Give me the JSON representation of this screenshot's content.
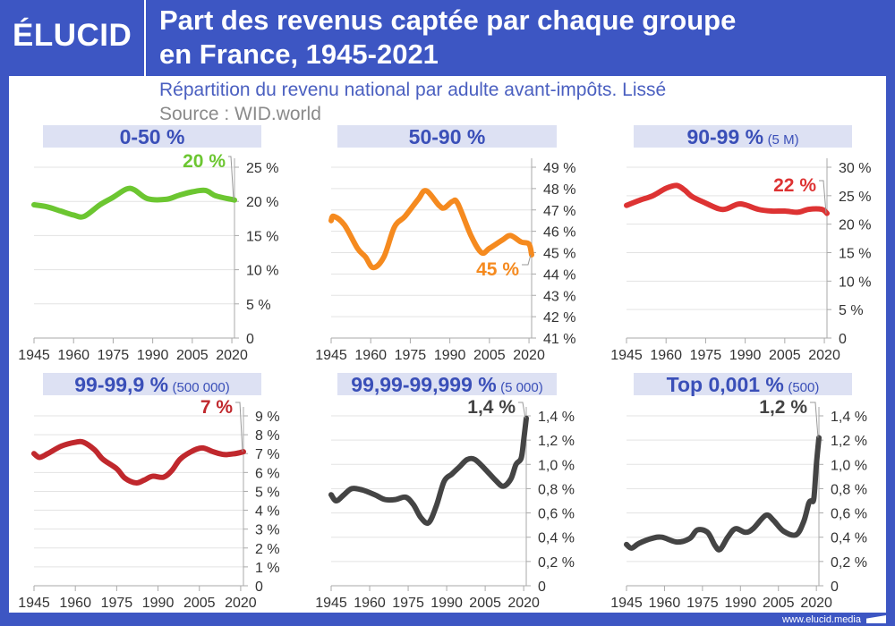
{
  "header": {
    "logo": "ÉLUCID",
    "title_line1": "Part des revenus captée par chaque groupe",
    "title_line2": "en France, 1945-2021",
    "subtitle": "Répartition du revenu national par adulte avant-impôts. Lissé",
    "source": "Source : WID.world"
  },
  "footer": {
    "url": "www.elucid.media"
  },
  "colors": {
    "brand": "#3d56c3",
    "banner": "#dde1f3"
  },
  "chart_data": [
    {
      "type": "line",
      "title": "0-50 %",
      "subtitle": "",
      "color": "#6cc631",
      "callout": "20 %",
      "x_ticks": [
        "1945",
        "1960",
        "1975",
        "1990",
        "2005",
        "2020"
      ],
      "xlim": [
        1945,
        2021
      ],
      "y_ticks": [
        "0",
        "5 %",
        "10 %",
        "15 %",
        "20 %",
        "25 %"
      ],
      "ylim": [
        0,
        25
      ],
      "grid": true,
      "x": [
        1945,
        1950,
        1955,
        1960,
        1964,
        1970,
        1975,
        1980,
        1983,
        1988,
        1995,
        2000,
        2005,
        2010,
        2014,
        2021
      ],
      "y": [
        19.5,
        19.2,
        18.6,
        18.0,
        17.8,
        19.5,
        20.6,
        21.8,
        21.7,
        20.4,
        20.3,
        20.9,
        21.4,
        21.6,
        20.8,
        20.2
      ]
    },
    {
      "type": "line",
      "title": "50-90 %",
      "subtitle": "",
      "color": "#f58a1f",
      "callout": "45 %",
      "x_ticks": [
        "1945",
        "1960",
        "1975",
        "1990",
        "2005",
        "2020"
      ],
      "xlim": [
        1945,
        2021
      ],
      "y_ticks": [
        "41 %",
        "42 %",
        "43 %",
        "44 %",
        "45 %",
        "46 %",
        "47 %",
        "48 %",
        "49 %"
      ],
      "ylim": [
        41,
        49
      ],
      "grid": true,
      "x": [
        1945,
        1946,
        1950,
        1955,
        1958,
        1961,
        1965,
        1969,
        1973,
        1978,
        1981,
        1986,
        1988,
        1991,
        1993,
        1998,
        2002,
        2005,
        2010,
        2013,
        2017,
        2020,
        2021
      ],
      "y": [
        46.5,
        46.7,
        46.3,
        45.2,
        44.8,
        44.3,
        44.8,
        46.2,
        46.7,
        47.5,
        47.9,
        47.2,
        47.1,
        47.4,
        47.3,
        45.8,
        45.0,
        45.2,
        45.6,
        45.8,
        45.5,
        45.4,
        44.9
      ]
    },
    {
      "type": "line",
      "title": "90-99 %",
      "subtitle": "(5 M)",
      "color": "#dd3333",
      "callout": "22 %",
      "x_ticks": [
        "1945",
        "1960",
        "1975",
        "1990",
        "2005",
        "2020"
      ],
      "xlim": [
        1945,
        2021
      ],
      "y_ticks": [
        "0",
        "5 %",
        "10 %",
        "15 %",
        "20 %",
        "25 %",
        "30 %"
      ],
      "ylim": [
        0,
        30
      ],
      "grid": true,
      "x": [
        1945,
        1950,
        1955,
        1960,
        1964,
        1967,
        1970,
        1975,
        1980,
        1983,
        1987,
        1990,
        1995,
        2000,
        2005,
        2010,
        2014,
        2019,
        2021
      ],
      "y": [
        23.3,
        24.2,
        25.0,
        26.3,
        26.8,
        26.0,
        24.8,
        23.7,
        22.7,
        22.7,
        23.5,
        23.4,
        22.6,
        22.3,
        22.3,
        22.1,
        22.6,
        22.6,
        21.9
      ]
    },
    {
      "type": "line",
      "title": "99-99,9 %",
      "subtitle": "(500 000)",
      "color": "#c0282d",
      "callout": "7 %",
      "x_ticks": [
        "1945",
        "1960",
        "1975",
        "1990",
        "2005",
        "2020"
      ],
      "xlim": [
        1945,
        2021
      ],
      "y_ticks": [
        "0",
        "1 %",
        "2 %",
        "3 %",
        "4 %",
        "5 %",
        "6 %",
        "7 %",
        "8 %",
        "9 %"
      ],
      "ylim": [
        0,
        9
      ],
      "grid": true,
      "x": [
        1945,
        1947,
        1950,
        1955,
        1960,
        1963,
        1967,
        1970,
        1975,
        1978,
        1982,
        1985,
        1988,
        1992,
        1995,
        1998,
        2002,
        2006,
        2010,
        2014,
        2018,
        2021
      ],
      "y": [
        7.0,
        6.8,
        7.0,
        7.4,
        7.6,
        7.6,
        7.2,
        6.7,
        6.2,
        5.7,
        5.45,
        5.6,
        5.8,
        5.75,
        6.1,
        6.7,
        7.1,
        7.3,
        7.1,
        6.95,
        7.0,
        7.1
      ]
    },
    {
      "type": "line",
      "title": "99,99-99,999 %",
      "subtitle": "(5 000)",
      "color": "#444444",
      "callout": "1,4 %",
      "x_ticks": [
        "1945",
        "1960",
        "1975",
        "1990",
        "2005",
        "2020"
      ],
      "xlim": [
        1945,
        2021
      ],
      "y_ticks": [
        "0",
        "0,2 %",
        "0,4 %",
        "0,6 %",
        "0,8 %",
        "1,0 %",
        "1,2 %",
        "1,4 %"
      ],
      "ylim": [
        0,
        1.4
      ],
      "grid": true,
      "x": [
        1945,
        1947,
        1950,
        1953,
        1957,
        1962,
        1966,
        1970,
        1974,
        1977,
        1980,
        1983,
        1986,
        1989,
        1992,
        1995,
        1998,
        2001,
        2005,
        2009,
        2012,
        2015,
        2017,
        2019,
        2020,
        2021
      ],
      "y": [
        0.75,
        0.7,
        0.75,
        0.8,
        0.79,
        0.75,
        0.71,
        0.71,
        0.73,
        0.67,
        0.56,
        0.52,
        0.66,
        0.86,
        0.92,
        0.98,
        1.04,
        1.04,
        0.96,
        0.87,
        0.82,
        0.88,
        1.0,
        1.05,
        1.2,
        1.38
      ]
    },
    {
      "type": "line",
      "title": "Top 0,001 %",
      "subtitle": "(500)",
      "color": "#444444",
      "callout": "1,2 %",
      "x_ticks": [
        "1945",
        "1960",
        "1975",
        "1990",
        "2005",
        "2020"
      ],
      "xlim": [
        1945,
        2021
      ],
      "y_ticks": [
        "0",
        "0,2 %",
        "0,4 %",
        "0,6 %",
        "0,8 %",
        "1,0 %",
        "1,2 %",
        "1,4 %"
      ],
      "ylim": [
        0,
        1.4
      ],
      "grid": true,
      "x": [
        1945,
        1947,
        1950,
        1955,
        1959,
        1965,
        1970,
        1973,
        1977,
        1980,
        1982,
        1985,
        1988,
        1992,
        1995,
        2000,
        2003,
        2007,
        2012,
        2015,
        2017,
        2018,
        2019,
        2020,
        2021
      ],
      "y": [
        0.34,
        0.31,
        0.35,
        0.39,
        0.4,
        0.36,
        0.39,
        0.46,
        0.44,
        0.33,
        0.3,
        0.4,
        0.47,
        0.44,
        0.47,
        0.58,
        0.54,
        0.45,
        0.42,
        0.53,
        0.68,
        0.7,
        0.72,
        1.0,
        1.22
      ]
    }
  ]
}
